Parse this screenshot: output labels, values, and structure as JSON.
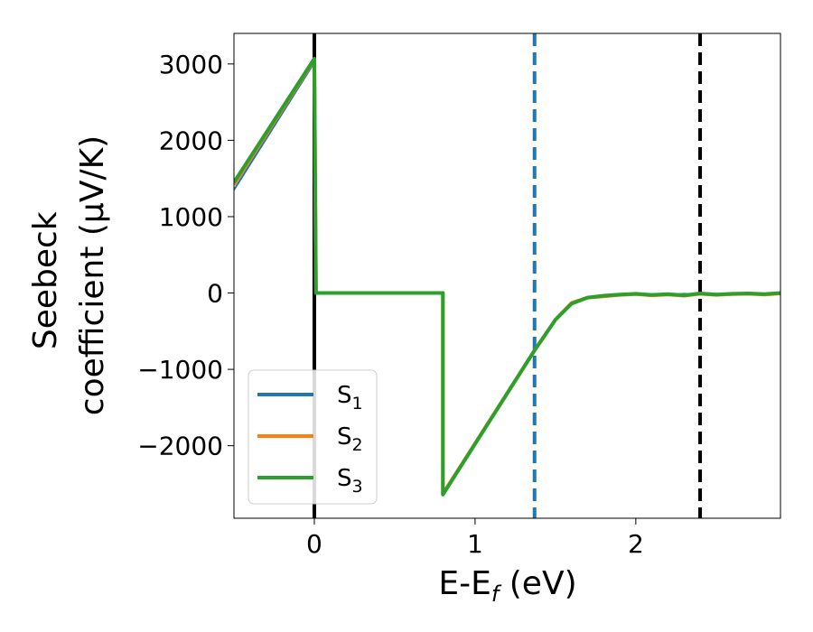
{
  "chart_data": {
    "type": "line",
    "xlabel": "E-E",
    "xlabel_subscript": "f",
    "xlabel_unit": " (eV)",
    "ylabel_line1": "Seebeck",
    "ylabel_line2": "coefficient  (μV/K)",
    "xlim": [
      -0.5,
      2.9
    ],
    "ylim": [
      -2950,
      3400
    ],
    "x_ticks": [
      0,
      1,
      2
    ],
    "x_tick_labels": [
      "0",
      "1",
      "2"
    ],
    "y_ticks": [
      -2000,
      -1000,
      0,
      1000,
      2000,
      3000
    ],
    "y_tick_labels": [
      "−2000",
      "−1000",
      "0",
      "1000",
      "2000",
      "3000"
    ],
    "grid": false,
    "legend_position": "lower-left",
    "series": [
      {
        "name": "S",
        "subscript": "1",
        "color": "#1f77b4",
        "x": [
          -0.5,
          0.0,
          0.01,
          0.8,
          0.8,
          1.37,
          1.5,
          1.6,
          1.7,
          1.8,
          1.9,
          2.0,
          2.1,
          2.2,
          2.3,
          2.4,
          2.5,
          2.6,
          2.7,
          2.8,
          2.9
        ],
        "y": [
          1350,
          3020,
          0,
          0,
          -2630,
          -750,
          -350,
          -120,
          -50,
          -40,
          -20,
          -20,
          -15,
          -25,
          -10,
          -20,
          -10,
          -20,
          -5,
          -15,
          -5
        ]
      },
      {
        "name": "S",
        "subscript": "2",
        "color": "#ff7f0e",
        "x": [
          -0.5,
          0.0,
          0.01,
          0.8,
          0.8,
          1.37,
          1.5,
          1.6,
          1.7,
          1.8,
          1.9,
          2.0,
          2.1,
          2.2,
          2.3,
          2.4,
          2.5,
          2.6,
          2.7,
          2.8,
          2.9
        ],
        "y": [
          1420,
          3060,
          0,
          0,
          -2630,
          -750,
          -350,
          -130,
          -60,
          -45,
          -25,
          -15,
          -30,
          -20,
          -35,
          -10,
          -25,
          -15,
          -10,
          -20,
          -5
        ]
      },
      {
        "name": "S",
        "subscript": "3",
        "color": "#2ca02c",
        "x": [
          -0.5,
          0.0,
          0.01,
          0.8,
          0.8,
          1.37,
          1.5,
          1.6,
          1.7,
          1.8,
          1.9,
          2.0,
          2.1,
          2.2,
          2.3,
          2.4,
          2.5,
          2.6,
          2.7,
          2.8,
          2.9
        ],
        "y": [
          1450,
          3070,
          0,
          0,
          -2640,
          -750,
          -350,
          -140,
          -60,
          -35,
          -20,
          -10,
          -25,
          -15,
          -30,
          -5,
          -20,
          -10,
          -5,
          -15,
          0
        ]
      }
    ],
    "vertical_lines": [
      {
        "x": 0.0,
        "style": "solid",
        "color": "#000000"
      },
      {
        "x": 1.37,
        "style": "dashed",
        "color": "#1f77b4"
      },
      {
        "x": 2.4,
        "style": "dashed",
        "color": "#1f77b4"
      },
      {
        "x": 2.4,
        "style": "dashed",
        "color": "#000000"
      }
    ]
  }
}
